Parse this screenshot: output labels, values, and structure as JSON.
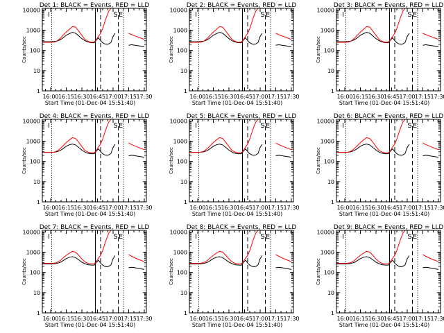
{
  "chart_data": {
    "type": "line",
    "y_scale": "log",
    "ylim": [
      1,
      12000
    ],
    "ylabel": "Counts/sec",
    "xlabel": "Start Time (01-Dec-04 15:51:40)",
    "x_ticks": [
      "16:00",
      "16:15",
      "16:30",
      "16:45",
      "17:00",
      "17:15",
      "17:30"
    ],
    "y_ticks": [
      "1",
      "10",
      "100",
      "1000",
      "10000"
    ],
    "colors": {
      "events": "#000000",
      "lld": "#ff0000",
      "axes": "#000000"
    },
    "markers": [
      {
        "x": "16:01",
        "label": "I",
        "style": "dotted"
      },
      {
        "x": "16:43",
        "label": "",
        "style": "solid"
      },
      {
        "x": "16:48",
        "label": "",
        "style": "dashed"
      },
      {
        "x": "17:05",
        "label": "S",
        "style": "dashed"
      },
      {
        "x": "17:10",
        "label": "E",
        "style": "dotted"
      }
    ],
    "x": [
      "15:52",
      "16:00",
      "16:03",
      "16:06",
      "16:09",
      "16:12",
      "16:15",
      "16:18",
      "16:21",
      "16:24",
      "16:27",
      "16:30",
      "16:33",
      "16:36",
      "16:39",
      "16:42",
      "16:44",
      "16:46",
      "16:48",
      "16:50",
      "16:52",
      "16:54",
      "16:56",
      "16:58",
      "17:00",
      "17:02",
      "17:04",
      "17:05",
      "17:06",
      "17:08",
      "17:10",
      "17:12",
      "17:15",
      "17:18",
      "17:21",
      "17:24",
      "17:27",
      "17:30"
    ],
    "panels": [
      {
        "title": "Det 1: BLACK = Events, RED = LLD",
        "series": [
          {
            "values": [
              270,
              270,
              275,
              290,
              330,
              420,
              560,
              680,
              780,
              700,
              520,
              380,
              300,
              260,
              240,
              240,
              330,
              420,
              300,
              240,
              210,
              200,
              210,
              250,
              500,
              700,
              null,
              null,
              null,
              null,
              null,
              null,
              180,
              190,
              180,
              170,
              160,
              150
            ]
          },
          {
            "values": [
              250,
              250,
              255,
              290,
              380,
              560,
              800,
              1100,
              1500,
              1400,
              900,
              550,
              350,
              280,
              250,
              260,
              350,
              500,
              700,
              1200,
              2500,
              5000,
              9000,
              12000,
              12000,
              12000,
              null,
              null,
              null,
              null,
              null,
              null,
              700,
              600,
              520,
              460,
              400,
              350
            ]
          }
        ]
      },
      {
        "title": "Det 2: BLACK = Events, RED = LLD",
        "series": [
          {
            "values": [
              270,
              270,
              275,
              290,
              330,
              420,
              560,
              680,
              780,
              700,
              520,
              380,
              300,
              260,
              240,
              240,
              330,
              420,
              300,
              240,
              210,
              200,
              210,
              250,
              500,
              700,
              null,
              null,
              null,
              null,
              null,
              null,
              180,
              190,
              180,
              170,
              160,
              150
            ]
          },
          {
            "values": [
              250,
              250,
              255,
              290,
              380,
              560,
              800,
              1100,
              1500,
              1400,
              900,
              550,
              350,
              280,
              250,
              260,
              350,
              500,
              700,
              1200,
              2500,
              5000,
              9000,
              12000,
              12000,
              12000,
              null,
              null,
              null,
              null,
              null,
              null,
              700,
              600,
              520,
              460,
              400,
              350
            ]
          }
        ]
      },
      {
        "title": "Det 3: BLACK = Events, RED = LLD",
        "series": [
          {
            "values": [
              270,
              270,
              275,
              290,
              330,
              420,
              560,
              680,
              780,
              700,
              520,
              380,
              300,
              260,
              240,
              240,
              330,
              420,
              300,
              240,
              210,
              200,
              210,
              250,
              500,
              700,
              null,
              null,
              null,
              null,
              null,
              null,
              180,
              190,
              180,
              170,
              160,
              150
            ]
          },
          {
            "values": [
              250,
              250,
              255,
              290,
              380,
              560,
              800,
              1100,
              1500,
              1400,
              900,
              550,
              350,
              280,
              250,
              260,
              350,
              500,
              700,
              1200,
              2500,
              5000,
              9000,
              12000,
              12000,
              12000,
              null,
              null,
              null,
              null,
              null,
              null,
              700,
              600,
              520,
              460,
              400,
              350
            ]
          }
        ]
      },
      {
        "title": "Det 4: BLACK = Events, RED = LLD",
        "series": [
          {
            "values": [
              280,
              280,
              285,
              300,
              340,
              430,
              560,
              660,
              720,
              650,
              490,
              360,
              290,
              250,
              240,
              240,
              330,
              420,
              300,
              240,
              210,
              200,
              210,
              250,
              500,
              700,
              null,
              null,
              null,
              null,
              null,
              null,
              190,
              200,
              190,
              180,
              170,
              160
            ]
          },
          {
            "values": [
              280,
              280,
              285,
              320,
              420,
              600,
              850,
              1150,
              1500,
              1350,
              880,
              540,
              350,
              290,
              260,
              270,
              360,
              520,
              720,
              1300,
              2600,
              5200,
              9000,
              12000,
              12000,
              12000,
              null,
              null,
              null,
              null,
              null,
              null,
              800,
              680,
              580,
              500,
              430,
              380
            ]
          }
        ]
      },
      {
        "title": "Det 5: BLACK = Events, RED = LLD",
        "series": [
          {
            "values": [
              280,
              280,
              285,
              300,
              340,
              430,
              560,
              660,
              720,
              650,
              490,
              360,
              290,
              250,
              240,
              240,
              330,
              420,
              300,
              240,
              210,
              200,
              210,
              250,
              500,
              700,
              null,
              null,
              null,
              null,
              null,
              null,
              190,
              200,
              190,
              180,
              170,
              160
            ]
          },
          {
            "values": [
              280,
              280,
              285,
              320,
              420,
              600,
              850,
              1150,
              1500,
              1350,
              880,
              540,
              350,
              290,
              260,
              270,
              360,
              520,
              720,
              1300,
              2600,
              5200,
              9000,
              12000,
              12000,
              12000,
              null,
              null,
              null,
              null,
              null,
              null,
              800,
              680,
              580,
              500,
              430,
              380
            ]
          }
        ]
      },
      {
        "title": "Det 6: BLACK = Events, RED = LLD",
        "series": [
          {
            "values": [
              280,
              280,
              285,
              300,
              340,
              430,
              560,
              660,
              720,
              650,
              490,
              360,
              290,
              250,
              240,
              240,
              330,
              420,
              300,
              240,
              210,
              200,
              210,
              250,
              500,
              700,
              null,
              null,
              null,
              null,
              null,
              null,
              190,
              200,
              190,
              180,
              170,
              160
            ]
          },
          {
            "values": [
              280,
              280,
              285,
              320,
              420,
              600,
              850,
              1150,
              1500,
              1350,
              880,
              540,
              350,
              290,
              260,
              270,
              360,
              520,
              720,
              1300,
              2600,
              5200,
              9000,
              12000,
              12000,
              12000,
              null,
              null,
              null,
              null,
              null,
              null,
              800,
              680,
              580,
              500,
              430,
              380
            ]
          }
        ]
      },
      {
        "title": "Det 7: BLACK = Events, RED = LLD",
        "series": [
          {
            "values": [
              260,
              260,
              265,
              280,
              310,
              380,
              480,
              560,
              600,
              540,
              420,
              320,
              270,
              240,
              230,
              230,
              320,
              400,
              290,
              230,
              200,
              190,
              200,
              240,
              480,
              680,
              null,
              null,
              null,
              null,
              null,
              null,
              170,
              180,
              170,
              160,
              150,
              140
            ]
          },
          {
            "values": [
              280,
              280,
              285,
              310,
              380,
              520,
              700,
              900,
              1100,
              1000,
              700,
              460,
              330,
              280,
              260,
              270,
              360,
              500,
              700,
              1200,
              2500,
              5000,
              9000,
              12000,
              12000,
              12000,
              null,
              null,
              null,
              null,
              null,
              null,
              750,
              620,
              520,
              450,
              390,
              340
            ]
          }
        ]
      },
      {
        "title": "Det 8: BLACK = Events, RED = LLD",
        "series": [
          {
            "values": [
              260,
              260,
              265,
              280,
              310,
              380,
              480,
              560,
              600,
              540,
              420,
              320,
              270,
              240,
              230,
              230,
              320,
              400,
              290,
              230,
              200,
              190,
              200,
              240,
              480,
              680,
              null,
              null,
              null,
              null,
              null,
              null,
              170,
              180,
              170,
              160,
              150,
              140
            ]
          },
          {
            "values": [
              280,
              280,
              285,
              310,
              380,
              520,
              700,
              900,
              1100,
              1000,
              700,
              460,
              330,
              280,
              260,
              270,
              360,
              500,
              700,
              1200,
              2500,
              5000,
              9000,
              12000,
              12000,
              12000,
              null,
              null,
              null,
              null,
              null,
              null,
              750,
              620,
              520,
              450,
              390,
              340
            ]
          }
        ]
      },
      {
        "title": "Det 9: BLACK = Events, RED = LLD",
        "series": [
          {
            "values": [
              260,
              260,
              265,
              280,
              310,
              380,
              480,
              560,
              600,
              540,
              420,
              320,
              270,
              240,
              230,
              230,
              320,
              400,
              290,
              230,
              200,
              190,
              200,
              240,
              480,
              680,
              null,
              null,
              null,
              null,
              null,
              null,
              170,
              180,
              170,
              160,
              150,
              140
            ]
          },
          {
            "values": [
              280,
              280,
              285,
              310,
              380,
              520,
              700,
              900,
              1100,
              1000,
              700,
              460,
              330,
              280,
              260,
              270,
              360,
              500,
              700,
              1200,
              2500,
              5000,
              9000,
              12000,
              12000,
              12000,
              null,
              null,
              null,
              null,
              null,
              null,
              750,
              620,
              520,
              450,
              390,
              340
            ]
          }
        ]
      }
    ]
  }
}
